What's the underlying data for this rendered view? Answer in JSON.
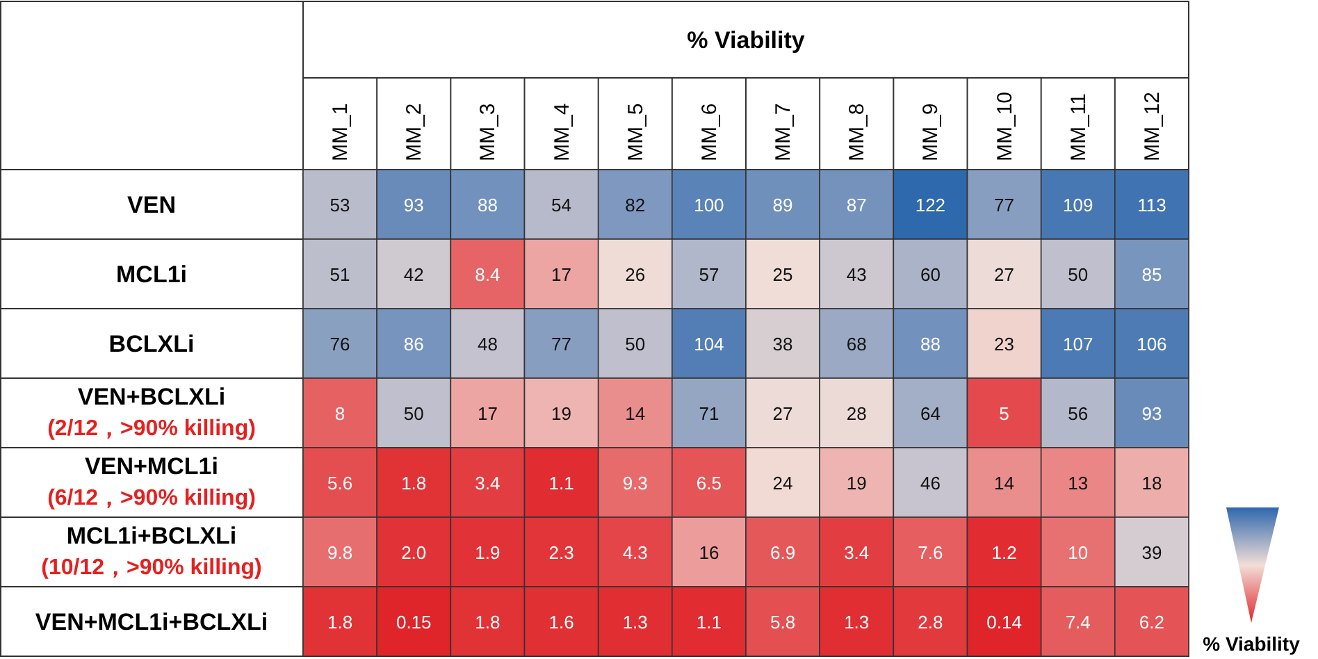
{
  "chart_data": {
    "type": "heatmap",
    "title": "% Viability",
    "clabel": "% Viability",
    "categories": [
      "MM_1",
      "MM_2",
      "MM_3",
      "MM_4",
      "MM_5",
      "MM_6",
      "MM_7",
      "MM_8",
      "MM_9",
      "MM_10",
      "MM_11",
      "MM_12"
    ],
    "y_categories": [
      "VEN",
      "MCL1i",
      "BCLXLi",
      "VEN+BCLXLi\n(2/12，>90% killing)",
      "VEN+MCL1i\n(6/12，>90% killing)",
      "MCL1i+BCLXLi\n(10/12，>90% killing)",
      "VEN+MCL1i+BCLXLi"
    ],
    "cells": [
      [
        53,
        93,
        88,
        54,
        82,
        100,
        89,
        87,
        122,
        77,
        109,
        113
      ],
      [
        51,
        42,
        8.4,
        17,
        26,
        57,
        25,
        43,
        60,
        27,
        50,
        85
      ],
      [
        76,
        86,
        48,
        77,
        50,
        104,
        38,
        68,
        88,
        23,
        107,
        106
      ],
      [
        8,
        50,
        17,
        19,
        14,
        71,
        27,
        28,
        64,
        5,
        56,
        93
      ],
      [
        5.6,
        1.8,
        3.4,
        1.1,
        9.3,
        6.5,
        24,
        19,
        46,
        14,
        13,
        18
      ],
      [
        9.8,
        2.0,
        1.9,
        2.3,
        4.3,
        16,
        6.9,
        3.4,
        7.6,
        1.2,
        10,
        39
      ],
      [
        1.8,
        0.15,
        1.8,
        1.6,
        1.3,
        1.1,
        5.8,
        1.3,
        2.8,
        0.14,
        7.4,
        6.2
      ]
    ],
    "cell_labels": [
      [
        "53",
        "93",
        "88",
        "54",
        "82",
        "100",
        "89",
        "87",
        "122",
        "77",
        "109",
        "113"
      ],
      [
        "51",
        "42",
        "8.4",
        "17",
        "26",
        "57",
        "25",
        "43",
        "60",
        "27",
        "50",
        "85"
      ],
      [
        "76",
        "86",
        "48",
        "77",
        "50",
        "104",
        "38",
        "68",
        "88",
        "23",
        "107",
        "106"
      ],
      [
        "8",
        "50",
        "17",
        "19",
        "14",
        "71",
        "27",
        "28",
        "64",
        "5",
        "56",
        "93"
      ],
      [
        "5.6",
        "1.8",
        "3.4",
        "1.1",
        "9.3",
        "6.5",
        "24",
        "19",
        "46",
        "14",
        "13",
        "18"
      ],
      [
        "9.8",
        "2.0",
        "1.9",
        "2.3",
        "4.3",
        "16",
        "6.9",
        "3.4",
        "7.6",
        "1.2",
        "10",
        "39"
      ],
      [
        "1.8",
        "0.15",
        "1.8",
        "1.6",
        "1.3",
        "1.1",
        "5.8",
        "1.3",
        "2.8",
        "0.14",
        "7.4",
        "6.2"
      ]
    ]
  }
}
